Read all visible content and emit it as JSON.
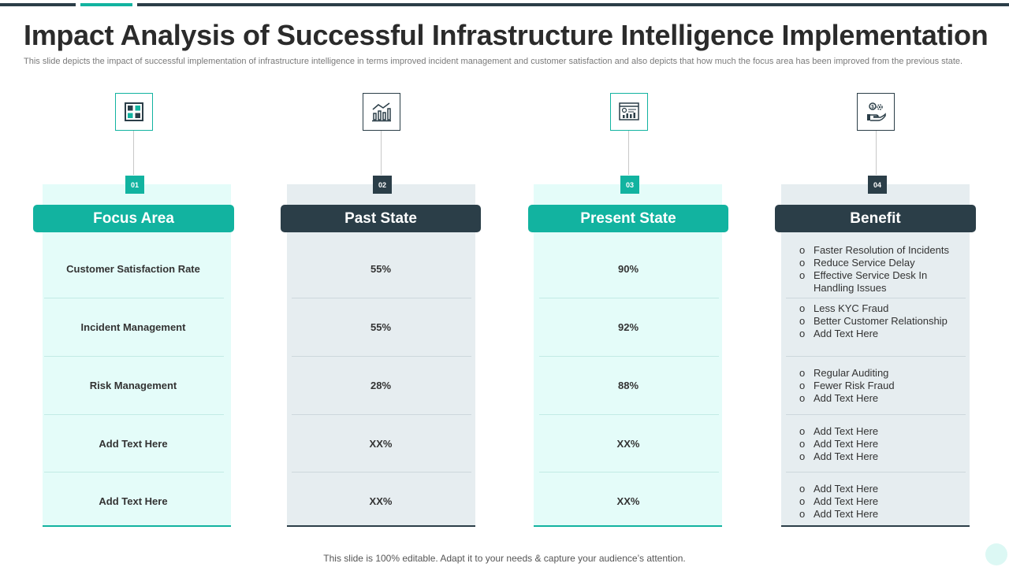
{
  "title": "Impact Analysis of Successful Infrastructure Intelligence Implementation",
  "subtitle": "This slide depicts the impact of successful implementation of infrastructure intelligence in terms improved incident management and customer satisfaction and also depicts that how much the focus area has been improved from the previous state.",
  "footer": "This slide is 100% editable. Adapt it to your needs & capture your audience’s attention.",
  "colors": {
    "teal": "#12b3a0",
    "dark": "#2b3e48",
    "teal_bg": "#e4fcf9",
    "dark_bg": "#e6edf0"
  },
  "columns": [
    {
      "number": "01",
      "header": "Focus Area",
      "icon": "window-grid-icon",
      "style": "teal",
      "rows": [
        "Customer  Satisfaction Rate",
        "Incident Management",
        "Risk  Management",
        "Add  Text Here",
        "Add  Text Here"
      ]
    },
    {
      "number": "02",
      "header": "Past State",
      "icon": "growth-chart-icon",
      "style": "dark",
      "rows": [
        "55%",
        "55%",
        "28%",
        "XX%",
        "XX%"
      ]
    },
    {
      "number": "03",
      "header": "Present State",
      "icon": "dashboard-chart-icon",
      "style": "teal",
      "rows": [
        "90%",
        "92%",
        "88%",
        "XX%",
        "XX%"
      ]
    },
    {
      "number": "04",
      "header": "Benefit",
      "icon": "hand-coin-gear-icon",
      "style": "dark",
      "bullets": [
        [
          "Faster Resolution  of Incidents",
          "Reduce  Service  Delay",
          "Effective  Service  Desk In Handling  Issues"
        ],
        [
          "Less KYC Fraud",
          "Better Customer Relationship",
          "Add Text Here"
        ],
        [
          "Regular  Auditing",
          "Fewer  Risk Fraud",
          "Add Text Here"
        ],
        [
          "Add Text Here",
          "Add Text Here",
          "Add Text Here"
        ],
        [
          "Add Text Here",
          "Add Text Here",
          "Add Text Here"
        ]
      ]
    }
  ]
}
